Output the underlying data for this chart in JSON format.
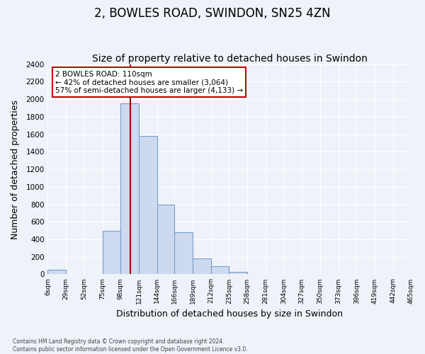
{
  "title": "2, BOWLES ROAD, SWINDON, SN25 4ZN",
  "subtitle": "Size of property relative to detached houses in Swindon",
  "xlabel": "Distribution of detached houses by size in Swindon",
  "ylabel": "Number of detached properties",
  "bin_labels": [
    "6sqm",
    "29sqm",
    "52sqm",
    "75sqm",
    "98sqm",
    "121sqm",
    "144sqm",
    "166sqm",
    "189sqm",
    "212sqm",
    "235sqm",
    "258sqm",
    "281sqm",
    "304sqm",
    "327sqm",
    "350sqm",
    "373sqm",
    "396sqm",
    "419sqm",
    "442sqm",
    "465sqm"
  ],
  "bin_edges": [
    6,
    29,
    52,
    75,
    98,
    121,
    144,
    166,
    189,
    212,
    235,
    258,
    281,
    304,
    327,
    350,
    373,
    396,
    419,
    442,
    465
  ],
  "bar_heights": [
    50,
    0,
    0,
    500,
    1950,
    1580,
    800,
    480,
    185,
    90,
    30,
    0,
    0,
    0,
    0,
    0,
    0,
    0,
    0,
    0
  ],
  "bar_color": "#ccd9ee",
  "bar_edge_color": "#7098c8",
  "red_line_x": 110,
  "ylim": [
    0,
    2400
  ],
  "yticks": [
    0,
    200,
    400,
    600,
    800,
    1000,
    1200,
    1400,
    1600,
    1800,
    2000,
    2200,
    2400
  ],
  "annotation_title": "2 BOWLES ROAD: 110sqm",
  "annotation_line1": "← 42% of detached houses are smaller (3,064)",
  "annotation_line2": "57% of semi-detached houses are larger (4,133) →",
  "footer_line1": "Contains HM Land Registry data © Crown copyright and database right 2024.",
  "footer_line2": "Contains public sector information licensed under the Open Government Licence v3.0.",
  "background_color": "#eef2f9",
  "grid_color": "#ffffff",
  "title_fontsize": 12,
  "subtitle_fontsize": 10,
  "annotation_box_color": "#ffffff",
  "annotation_box_edge": "#cc0000"
}
